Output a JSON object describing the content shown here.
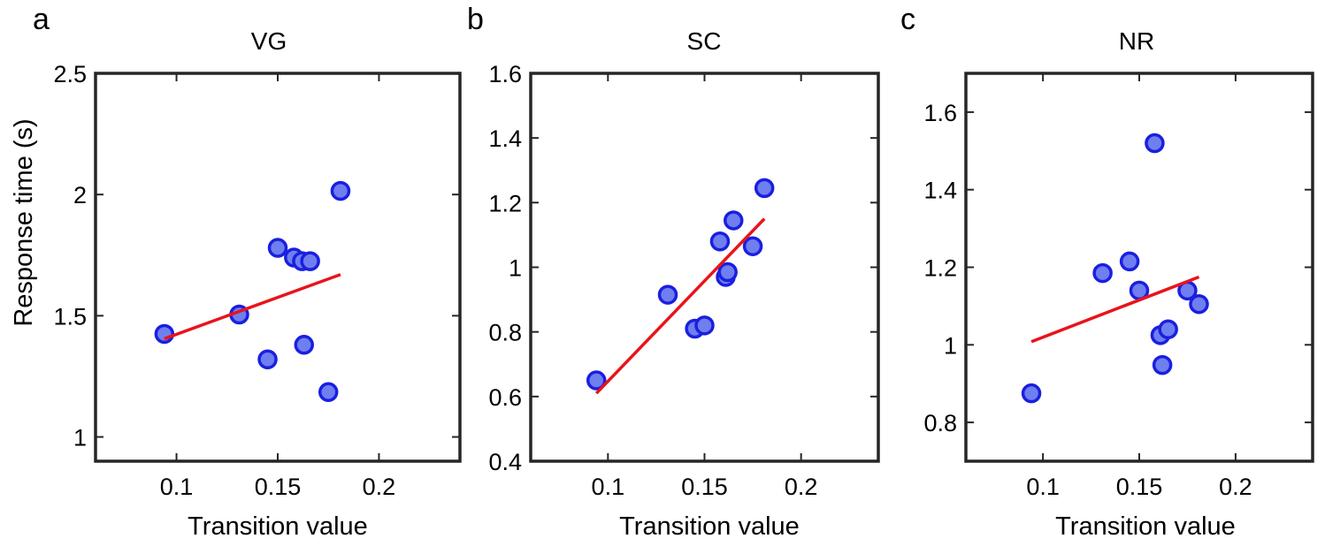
{
  "figure": {
    "ylabel_shared": "Response time (s)"
  },
  "style": {
    "marker_fill": "#6f7ff0",
    "marker_edge": "#1a1fe0",
    "fit_line": "#e8141a",
    "axes_color": "#262626"
  },
  "chart_data": [
    {
      "type": "scatter",
      "panel_letter": "a",
      "title": "VG",
      "xlabel": "Transition value",
      "ylabel": "Response time (s)",
      "xlim": [
        0.06,
        0.24
      ],
      "ylim": [
        0.9,
        2.5
      ],
      "xticks": [
        0.1,
        0.15,
        0.2
      ],
      "xtick_labels": [
        "0.1",
        "0.15",
        "0.2"
      ],
      "yticks": [
        1,
        1.5,
        2,
        2.5
      ],
      "ytick_labels": [
        "1",
        "1.5",
        "2",
        "2.5"
      ],
      "x": [
        0.094,
        0.131,
        0.145,
        0.15,
        0.158,
        0.162,
        0.163,
        0.166,
        0.175,
        0.181
      ],
      "y": [
        1.425,
        1.505,
        1.32,
        1.78,
        1.74,
        1.725,
        1.38,
        1.725,
        1.185,
        2.015
      ],
      "fit_line": {
        "x": [
          0.094,
          0.181
        ],
        "y": [
          1.405,
          1.67
        ]
      },
      "grid": false
    },
    {
      "type": "scatter",
      "panel_letter": "b",
      "title": "SC",
      "xlabel": "Transition value",
      "ylabel": "",
      "xlim": [
        0.06,
        0.24
      ],
      "ylim": [
        0.4,
        1.6
      ],
      "xticks": [
        0.1,
        0.15,
        0.2
      ],
      "xtick_labels": [
        "0.1",
        "0.15",
        "0.2"
      ],
      "yticks": [
        0.4,
        0.6,
        0.8,
        1.0,
        1.2,
        1.4,
        1.6
      ],
      "ytick_labels": [
        "0.4",
        "0.6",
        "0.8",
        "1",
        "1.2",
        "1.4",
        "1.6"
      ],
      "x": [
        0.094,
        0.131,
        0.145,
        0.15,
        0.158,
        0.161,
        0.162,
        0.165,
        0.175,
        0.181
      ],
      "y": [
        0.65,
        0.915,
        0.81,
        0.82,
        1.08,
        0.97,
        0.985,
        1.145,
        1.065,
        1.245
      ],
      "fit_line": {
        "x": [
          0.094,
          0.181
        ],
        "y": [
          0.61,
          1.15
        ]
      },
      "grid": false
    },
    {
      "type": "scatter",
      "panel_letter": "c",
      "title": "NR",
      "xlabel": "Transition value",
      "ylabel": "",
      "xlim": [
        0.06,
        0.24
      ],
      "ylim": [
        0.7,
        1.7
      ],
      "xticks": [
        0.1,
        0.15,
        0.2
      ],
      "xtick_labels": [
        "0.1",
        "0.15",
        "0.2"
      ],
      "yticks": [
        0.8,
        1.0,
        1.2,
        1.4,
        1.6
      ],
      "ytick_labels": [
        "0.8",
        "1",
        "1.2",
        "1.4",
        "1.6"
      ],
      "x": [
        0.094,
        0.131,
        0.145,
        0.15,
        0.158,
        0.161,
        0.162,
        0.165,
        0.175,
        0.181
      ],
      "y": [
        0.875,
        1.185,
        1.215,
        1.14,
        1.52,
        1.025,
        0.948,
        1.04,
        1.14,
        1.105
      ],
      "fit_line": {
        "x": [
          0.094,
          0.181
        ],
        "y": [
          1.008,
          1.175
        ]
      },
      "grid": false
    }
  ]
}
